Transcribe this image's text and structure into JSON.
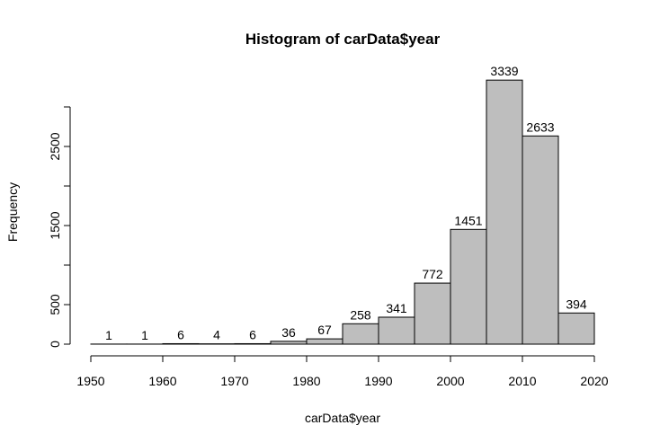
{
  "chart_data": {
    "type": "bar",
    "title": "Histogram of carData$year",
    "xlabel": "carData$year",
    "ylabel": "Frequency",
    "bin_edges": [
      1950,
      1955,
      1960,
      1965,
      1970,
      1975,
      1980,
      1985,
      1990,
      1995,
      2000,
      2005,
      2010,
      2015,
      2020
    ],
    "values": [
      1,
      1,
      6,
      4,
      6,
      36,
      67,
      258,
      341,
      772,
      1451,
      3339,
      2633,
      394
    ],
    "data_labels": [
      "1",
      "1",
      "6",
      "4",
      "6",
      "36",
      "67",
      "258",
      "341",
      "772",
      "1451",
      "3339",
      "2633",
      "394"
    ],
    "xlim": [
      1950,
      2020
    ],
    "ylim": [
      0,
      3000
    ],
    "x_ticks": [
      1950,
      1960,
      1970,
      1980,
      1990,
      2000,
      2010,
      2020
    ],
    "x_tick_labels": [
      "1950",
      "1960",
      "1970",
      "1980",
      "1990",
      "2000",
      "2010",
      "2020"
    ],
    "y_ticks": [
      0,
      500,
      1000,
      1500,
      2000,
      2500,
      3000
    ],
    "y_tick_labels": [
      "0",
      "500",
      "",
      "1500",
      "",
      "2500",
      ""
    ],
    "grid": false,
    "colors": {
      "bar_fill": "#bebebe",
      "bar_stroke": "#000000",
      "text": "#000000"
    }
  }
}
